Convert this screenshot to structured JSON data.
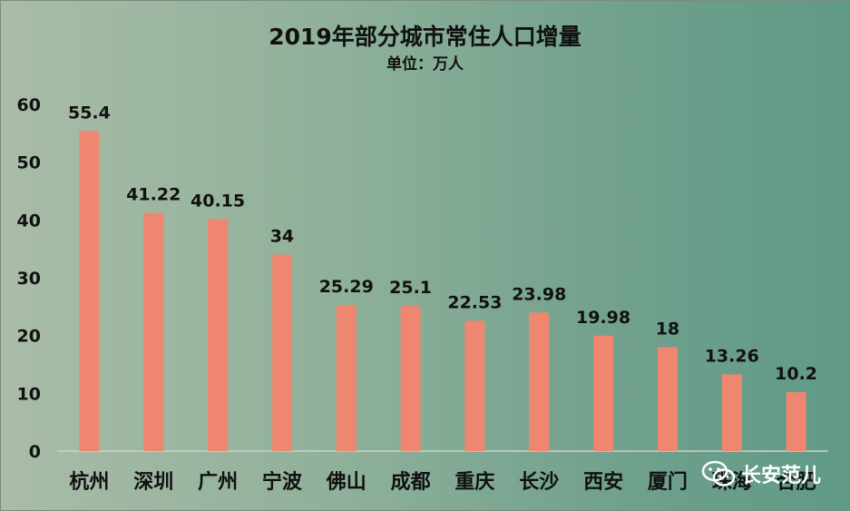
{
  "chart_data": {
    "type": "bar",
    "title": "2019年部分城市常住人口增量",
    "subtitle": "单位：万人",
    "categories": [
      "杭州",
      "深圳",
      "广州",
      "宁波",
      "佛山",
      "成都",
      "重庆",
      "长沙",
      "西安",
      "厦门",
      "珠海",
      "合肥"
    ],
    "values": [
      55.4,
      41.22,
      40.15,
      34,
      25.29,
      25.1,
      22.53,
      23.98,
      19.98,
      18,
      13.26,
      10.2
    ],
    "value_labels": [
      "55.4",
      "41.22",
      "40.15",
      "34",
      "25.29",
      "25.1",
      "22.53",
      "23.98",
      "19.98",
      "18",
      "13.26",
      "10.2"
    ],
    "ylim": [
      0,
      60
    ],
    "yticks": [
      "0",
      "10",
      "20",
      "30",
      "40",
      "50",
      "60"
    ],
    "xlabel": "",
    "ylabel": "",
    "grid": false,
    "legend": "none",
    "bar_color": "#ef8670"
  },
  "watermark": {
    "icon": "wechat-icon",
    "text": "长安范儿"
  }
}
